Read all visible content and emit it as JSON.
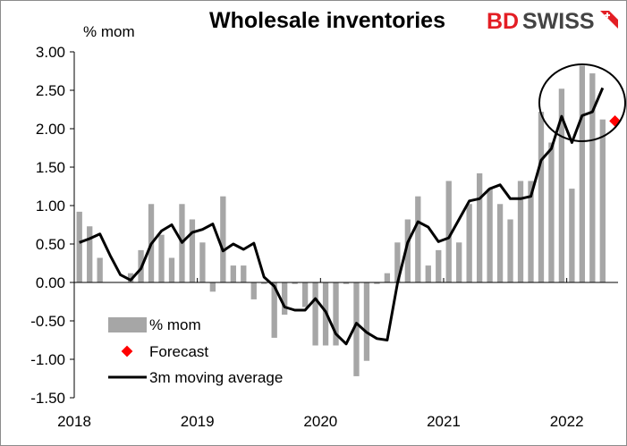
{
  "title": "Wholesale inventories",
  "unit_label": "% mom",
  "logo": {
    "part1": "BD",
    "part2": "SWISS"
  },
  "colors": {
    "bars": "#a6a6a6",
    "line": "#000000",
    "forecast": "#ff0000",
    "logo_red": "#e31e24",
    "logo_grey": "#444444"
  },
  "legend": {
    "placement": "bottom-left",
    "items": [
      {
        "label": "% mom",
        "kind": "bar"
      },
      {
        "label": "Forecast",
        "kind": "marker"
      },
      {
        "label": "3m moving average",
        "kind": "line"
      }
    ]
  },
  "chart_data": {
    "type": "bar",
    "title": "Wholesale inventories",
    "ylabel": "% mom",
    "ylim": [
      -1.5,
      3.0
    ],
    "yticks": [
      "3.00",
      "2.50",
      "2.00",
      "1.50",
      "1.00",
      "0.50",
      "0.00",
      "-0.50",
      "-1.00",
      "-1.50"
    ],
    "xtick_labels": [
      "2018",
      "2019",
      "2020",
      "2021",
      "2022"
    ],
    "grid": false,
    "months": [
      "2018-01",
      "2018-02",
      "2018-03",
      "2018-04",
      "2018-05",
      "2018-06",
      "2018-07",
      "2018-08",
      "2018-09",
      "2018-10",
      "2018-11",
      "2018-12",
      "2019-01",
      "2019-02",
      "2019-03",
      "2019-04",
      "2019-05",
      "2019-06",
      "2019-07",
      "2019-08",
      "2019-09",
      "2019-10",
      "2019-11",
      "2019-12",
      "2020-01",
      "2020-02",
      "2020-03",
      "2020-04",
      "2020-05",
      "2020-06",
      "2020-07",
      "2020-08",
      "2020-09",
      "2020-10",
      "2020-11",
      "2020-12",
      "2021-01",
      "2021-02",
      "2021-03",
      "2021-04",
      "2021-05",
      "2021-06",
      "2021-07",
      "2021-08",
      "2021-09",
      "2021-10",
      "2021-11",
      "2021-12",
      "2022-01",
      "2022-02",
      "2022-03",
      "2022-04",
      "2022-05"
    ],
    "series": [
      {
        "name": "% mom",
        "type": "bar",
        "values": [
          0.92,
          0.73,
          0.32,
          0,
          0,
          0.12,
          0.42,
          1.02,
          0.62,
          0.32,
          1.02,
          0.82,
          0.52,
          -0.12,
          1.12,
          0.22,
          0.22,
          -0.22,
          -0.02,
          -0.72,
          -0.42,
          -0.02,
          -0.32,
          -0.82,
          -0.82,
          -0.82,
          -0.02,
          -1.22,
          -1.02,
          -0.02,
          0.12,
          0.52,
          0.82,
          1.12,
          0.22,
          0.42,
          1.32,
          0.52,
          1.02,
          1.42,
          1.22,
          1.02,
          0.82,
          1.32,
          1.32,
          2.22,
          1.82,
          2.52,
          1.22,
          2.82,
          2.72,
          2.12,
          null
        ]
      },
      {
        "name": "3m moving average",
        "type": "line",
        "values": [
          0.52,
          0.57,
          0.63,
          0.35,
          0.1,
          0.03,
          0.18,
          0.5,
          0.67,
          0.75,
          0.52,
          0.65,
          0.69,
          0.76,
          0.41,
          0.5,
          0.43,
          0.51,
          0.07,
          -0.05,
          -0.32,
          -0.36,
          -0.36,
          -0.21,
          -0.38,
          -0.67,
          -0.8,
          -0.53,
          -0.65,
          -0.73,
          -0.75,
          -0.01,
          0.52,
          0.79,
          0.72,
          0.53,
          0.58,
          0.82,
          1.06,
          1.09,
          1.22,
          1.27,
          1.09,
          1.09,
          1.12,
          1.59,
          1.74,
          2.16,
          1.82,
          2.17,
          2.22,
          2.53,
          null
        ]
      },
      {
        "name": "Forecast",
        "type": "scatter",
        "values": [
          null,
          null,
          null,
          null,
          null,
          null,
          null,
          null,
          null,
          null,
          null,
          null,
          null,
          null,
          null,
          null,
          null,
          null,
          null,
          null,
          null,
          null,
          null,
          null,
          null,
          null,
          null,
          null,
          null,
          null,
          null,
          null,
          null,
          null,
          null,
          null,
          null,
          null,
          null,
          null,
          null,
          null,
          null,
          null,
          null,
          null,
          null,
          null,
          null,
          null,
          null,
          null,
          2.1
        ]
      }
    ],
    "annotations": [
      "circle highlighting latest data"
    ]
  }
}
